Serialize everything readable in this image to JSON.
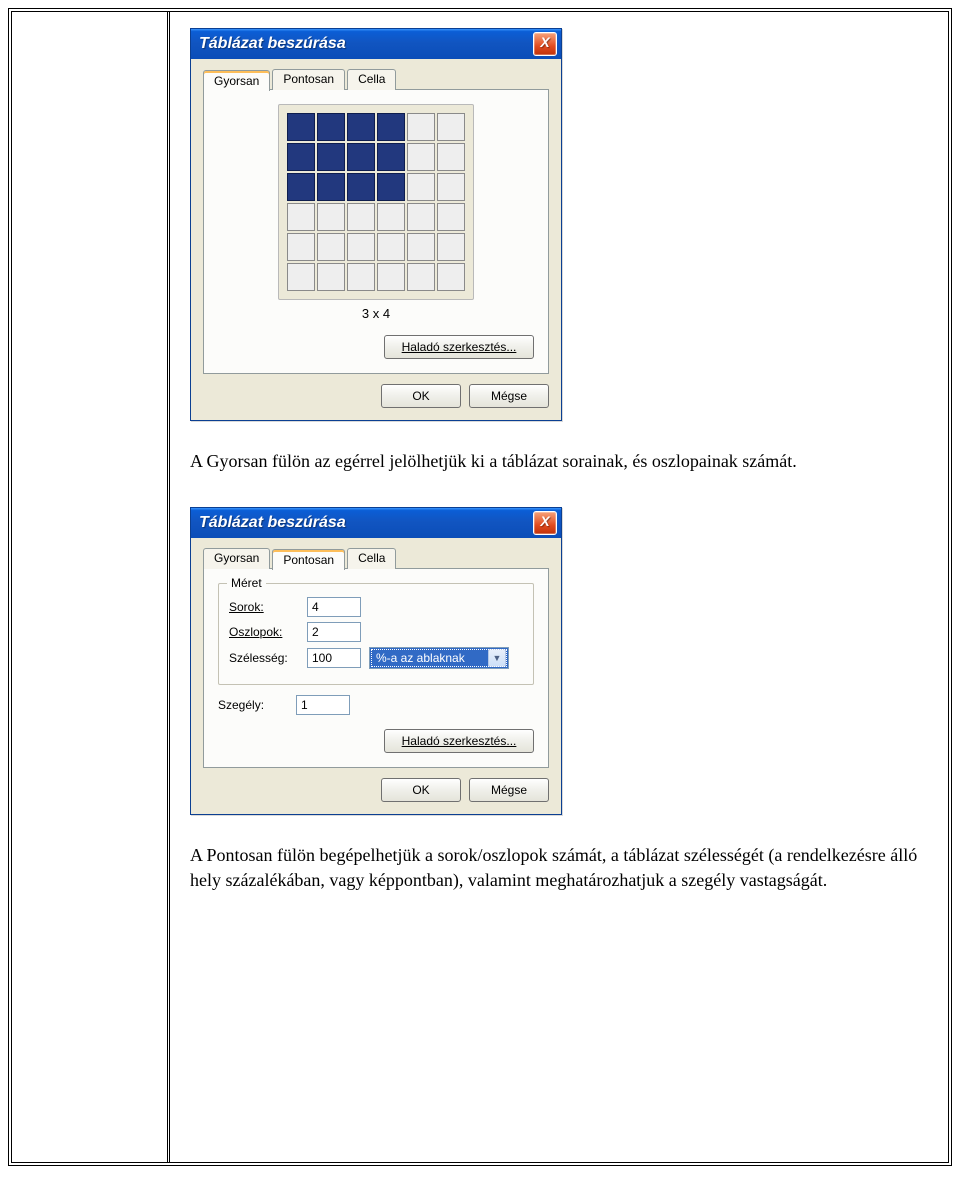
{
  "colors": {
    "page_border": "#000000",
    "dialog_bg": "#ece9d8",
    "dialog_border": "#0b3f92",
    "titlebar_gradient": [
      "#3a95ff",
      "#0b5ed6",
      "#1155c1",
      "#0b4db8"
    ],
    "titlebar_text": "#ffffff",
    "close_btn_gradient": [
      "#f7a27a",
      "#e24b1f",
      "#c0310a"
    ],
    "tab_border": "#919b9c",
    "tab_active_accent": "#fdbe5a",
    "panel_bg": "#fcfcfa",
    "input_border": "#7f9db9",
    "select_highlight": "#316ac5",
    "grid_cell": "#eeeeee",
    "grid_cell_border": "#8a8a8a",
    "grid_cell_selected": "#22387e",
    "grid_cell_selected_border": "#0f1e4e",
    "button_border": "#707070"
  },
  "dialog_title": "Táblázat beszúrása",
  "close_glyph": "X",
  "tabs": [
    "Gyorsan",
    "Pontosan",
    "Cella"
  ],
  "quick": {
    "grid_cols": 6,
    "grid_rows": 6,
    "selected_rows": 3,
    "selected_cols": 4,
    "size_label": "3 x 4"
  },
  "precise": {
    "legend": "Méret",
    "rows_label": "Sorok:",
    "rows_value": "4",
    "cols_label": "Oszlopok:",
    "cols_value": "2",
    "width_label": "Szélesség:",
    "width_value": "100",
    "width_unit_selected": "%-a az ablaknak",
    "border_label": "Szegély:",
    "border_value": "1"
  },
  "buttons": {
    "advanced": "Haladó szerkesztés...",
    "ok": "OK",
    "cancel": "Mégse"
  },
  "paragraphs": {
    "after_quick": "A Gyorsan fülön az egérrel jelölhetjük ki a táblázat sorainak, és oszlopainak számát.",
    "after_precise": "A Pontosan fülön begépelhetjük a sorok/oszlopok számát, a táblázat szélességét (a rendelkezésre álló hely százalékában, vagy képpontban), valamint meghatározhatjuk a szegély vastagságát."
  }
}
